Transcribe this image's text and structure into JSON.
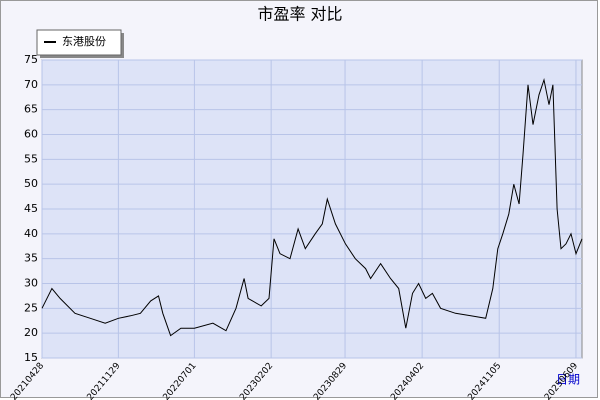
{
  "chart_data": {
    "type": "line",
    "title": "市盈率 对比",
    "x_label": "日期",
    "x": [
      "20210428",
      "20210526",
      "20210618",
      "20210730",
      "20210911",
      "20211023",
      "20211129",
      "20220102",
      "20220130",
      "20220228",
      "20220322",
      "20220403",
      "20220425",
      "20220524",
      "20220701",
      "20220822",
      "20220928",
      "20221026",
      "20221118",
      "20221129",
      "20230105",
      "20230127",
      "20230210",
      "20230227",
      "20230327",
      "20230419",
      "20230509",
      "20230606",
      "20230626",
      "20230710",
      "20230802",
      "20230830",
      "20230927",
      "20231026",
      "20231109",
      "20231207",
      "20240104",
      "20240127",
      "20240216",
      "20240306",
      "20240323",
      "20240412",
      "20240501",
      "20240524",
      "20240705",
      "20240817",
      "20240928",
      "20241018",
      "20241101",
      "20241115",
      "20241202",
      "20241216",
      "20241231",
      "20250111",
      "20250125",
      "20250208",
      "20250225",
      "20250311",
      "20250325",
      "20250405",
      "20250417",
      "20250428",
      "20250512",
      "20250526",
      "20250609",
      "20250626"
    ],
    "series": [
      {
        "name": "东港股份",
        "color": "#000000",
        "values": [
          25,
          29,
          27,
          24,
          23,
          22,
          23,
          23.5,
          24,
          26.5,
          27.5,
          24,
          19.5,
          21,
          21,
          22,
          20.5,
          25,
          31,
          27,
          25.5,
          27,
          39,
          36,
          35,
          41,
          37,
          40,
          42,
          47,
          42,
          38,
          35,
          33,
          31,
          34,
          31,
          29,
          21,
          28,
          30,
          27,
          28,
          25,
          24,
          23.5,
          23,
          29,
          37,
          40,
          44,
          50,
          46,
          56,
          70,
          62,
          68,
          71,
          66,
          70,
          45,
          37,
          38,
          40,
          36,
          39
        ]
      }
    ],
    "xlim": [
      "20210428",
      "20250626"
    ],
    "xticks": [
      "20210428",
      "20211129",
      "20220701",
      "20230202",
      "20230829",
      "20240402",
      "20241105",
      "20250609"
    ],
    "ylim": [
      15,
      75
    ],
    "yticks": [
      15,
      20,
      25,
      30,
      35,
      40,
      45,
      50,
      55,
      60,
      65,
      70,
      75
    ],
    "grid": true
  }
}
